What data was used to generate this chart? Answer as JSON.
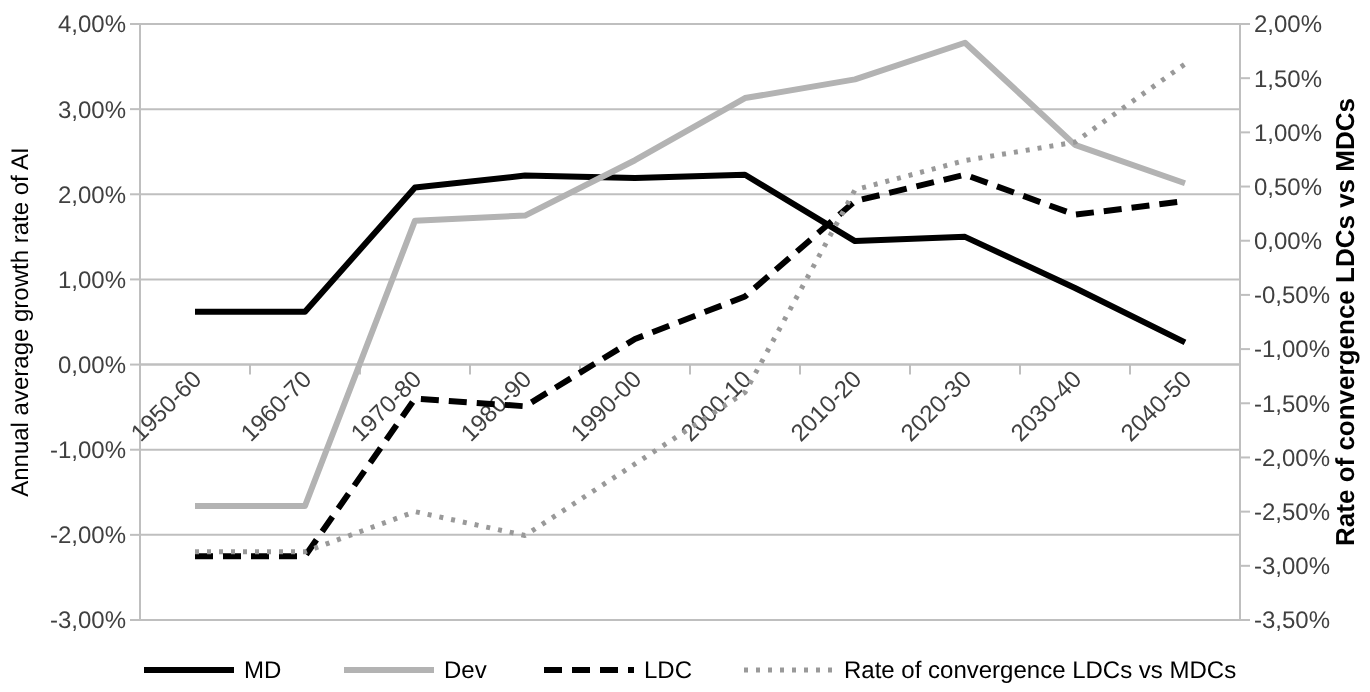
{
  "chart_data": {
    "type": "line",
    "categories": [
      "1950-60",
      "1960-70",
      "1970-80",
      "1980-90",
      "1990-00",
      "2000-10",
      "2010-20",
      "2020-30",
      "2030-40",
      "2040-50"
    ],
    "ylabel": "Annual average growth rate of AI",
    "y2label": "Rate of convergence LDCs vs MDCs",
    "ylim": [
      -3,
      4
    ],
    "yticks": [
      {
        "value": -3,
        "label": "-3,00%"
      },
      {
        "value": -2,
        "label": "-2,00%"
      },
      {
        "value": -1,
        "label": "-1,00%"
      },
      {
        "value": 0,
        "label": "0,00%"
      },
      {
        "value": 1,
        "label": "1,00%"
      },
      {
        "value": 2,
        "label": "2,00%"
      },
      {
        "value": 3,
        "label": "3,00%"
      },
      {
        "value": 4,
        "label": "4,00%"
      }
    ],
    "y2lim": [
      -3.5,
      2
    ],
    "y2ticks": [
      {
        "value": -3.5,
        "label": "-3,50%"
      },
      {
        "value": -3,
        "label": "-3,00%"
      },
      {
        "value": -2.5,
        "label": "-2,50%"
      },
      {
        "value": -2,
        "label": "-2,00%"
      },
      {
        "value": -1.5,
        "label": "-1,50%"
      },
      {
        "value": -1,
        "label": "-1,00%"
      },
      {
        "value": -0.5,
        "label": "-0,50%"
      },
      {
        "value": 0,
        "label": "0,00%"
      },
      {
        "value": 0.5,
        "label": "0,50%"
      },
      {
        "value": 1,
        "label": "1,00%"
      },
      {
        "value": 1.5,
        "label": "1,50%"
      },
      {
        "value": 2,
        "label": "2,00%"
      }
    ],
    "grid": "y",
    "legend": "bottom",
    "series": [
      {
        "name": "MD",
        "color": "#000000",
        "line_style": "solid",
        "values": [
          0.62,
          0.62,
          2.08,
          2.22,
          2.19,
          2.23,
          1.45,
          1.5,
          0.9,
          0.26
        ]
      },
      {
        "name": "Dev",
        "color": "#b3b3b3",
        "line_style": "solid",
        "values": [
          -1.66,
          -1.66,
          1.69,
          1.75,
          2.4,
          3.13,
          3.35,
          3.78,
          2.58,
          2.13
        ]
      },
      {
        "name": "LDC",
        "color": "#000000",
        "line_style": "dashed",
        "values": [
          -2.25,
          -2.25,
          -0.4,
          -0.49,
          0.3,
          0.8,
          1.92,
          2.23,
          1.76,
          1.92
        ]
      },
      {
        "name": "Rate of convergence LDCs vs MDCs",
        "color": "#999999",
        "line_style": "dotted",
        "axis": "y2",
        "values": [
          -2.87,
          -2.87,
          -2.5,
          -2.72,
          -2.06,
          -1.4,
          0.47,
          0.74,
          0.91,
          1.63
        ]
      }
    ]
  }
}
